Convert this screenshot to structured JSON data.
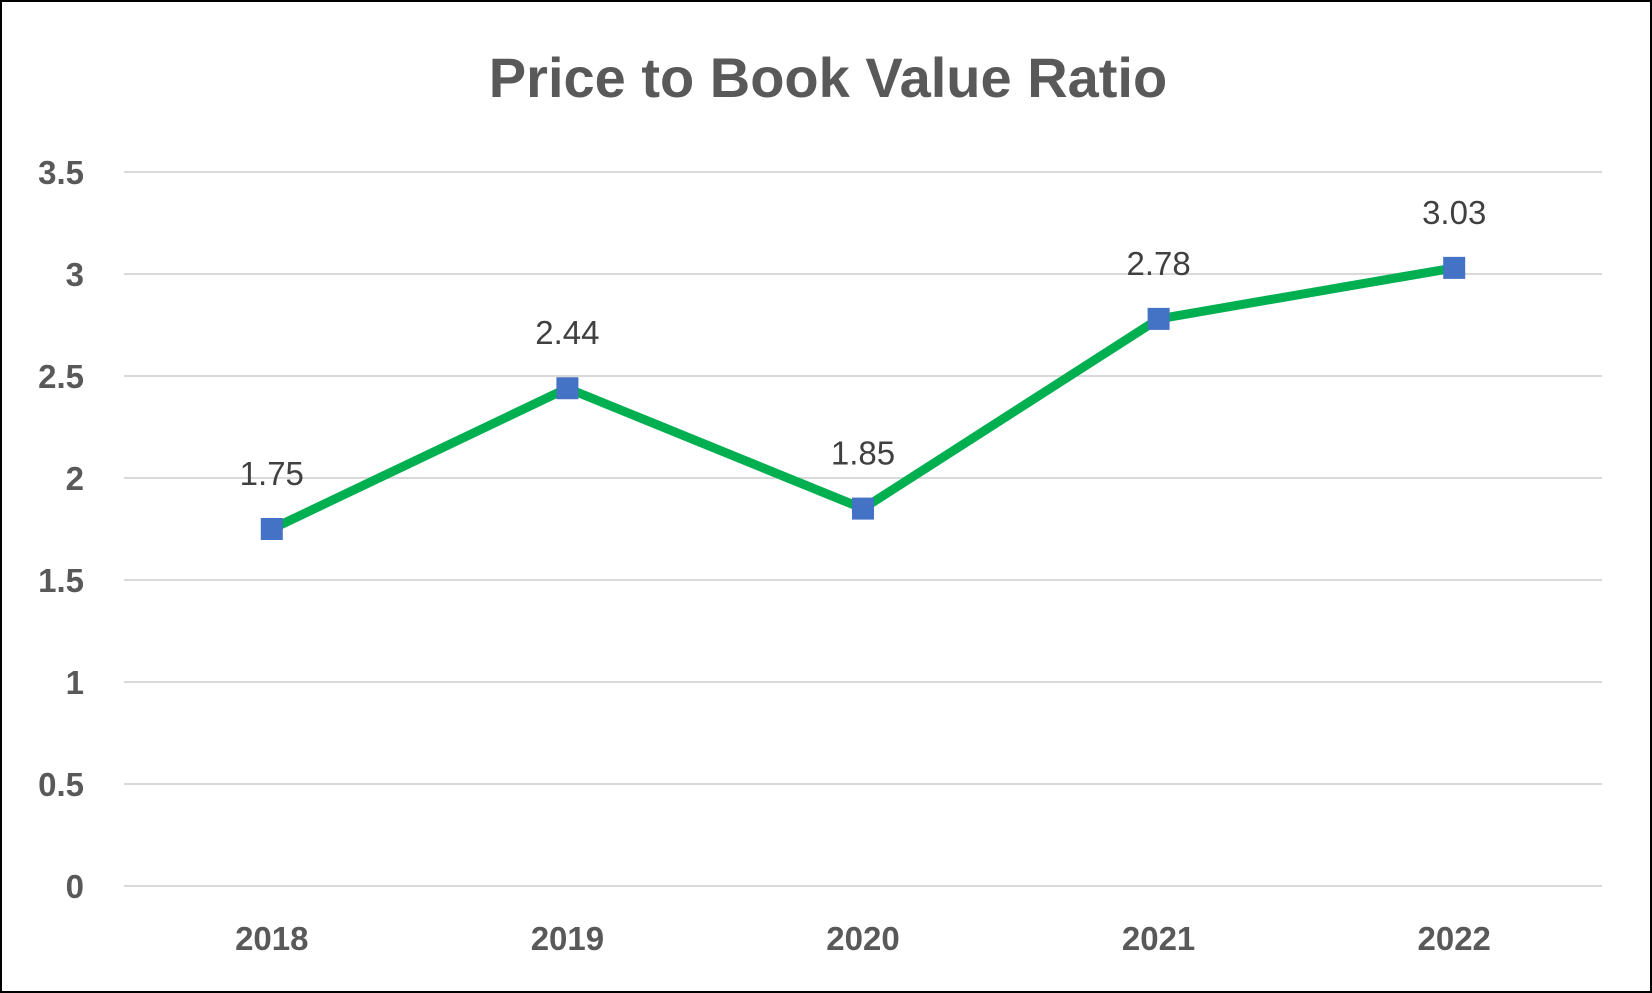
{
  "chart_data": {
    "type": "line",
    "title": "Price to Book Value Ratio",
    "xlabel": "",
    "ylabel": "",
    "categories": [
      "2018",
      "2019",
      "2020",
      "2021",
      "2022"
    ],
    "series": [
      {
        "values": [
          1.75,
          2.44,
          1.85,
          2.78,
          3.03
        ],
        "data_labels": [
          "1.75",
          "2.44",
          "1.85",
          "2.78",
          "3.03"
        ],
        "line_color": "#00B050",
        "marker": "square",
        "marker_color": "#4472C4"
      }
    ],
    "ylim": [
      0,
      3.5
    ],
    "yticks": [
      "0",
      "0.5",
      "1",
      "1.5",
      "2",
      "2.5",
      "3",
      "3.5"
    ],
    "ytick_values": [
      0,
      0.5,
      1,
      1.5,
      2,
      2.5,
      3,
      3.5
    ],
    "grid": true,
    "grid_color": "#D9D9D9",
    "legend": "none"
  }
}
